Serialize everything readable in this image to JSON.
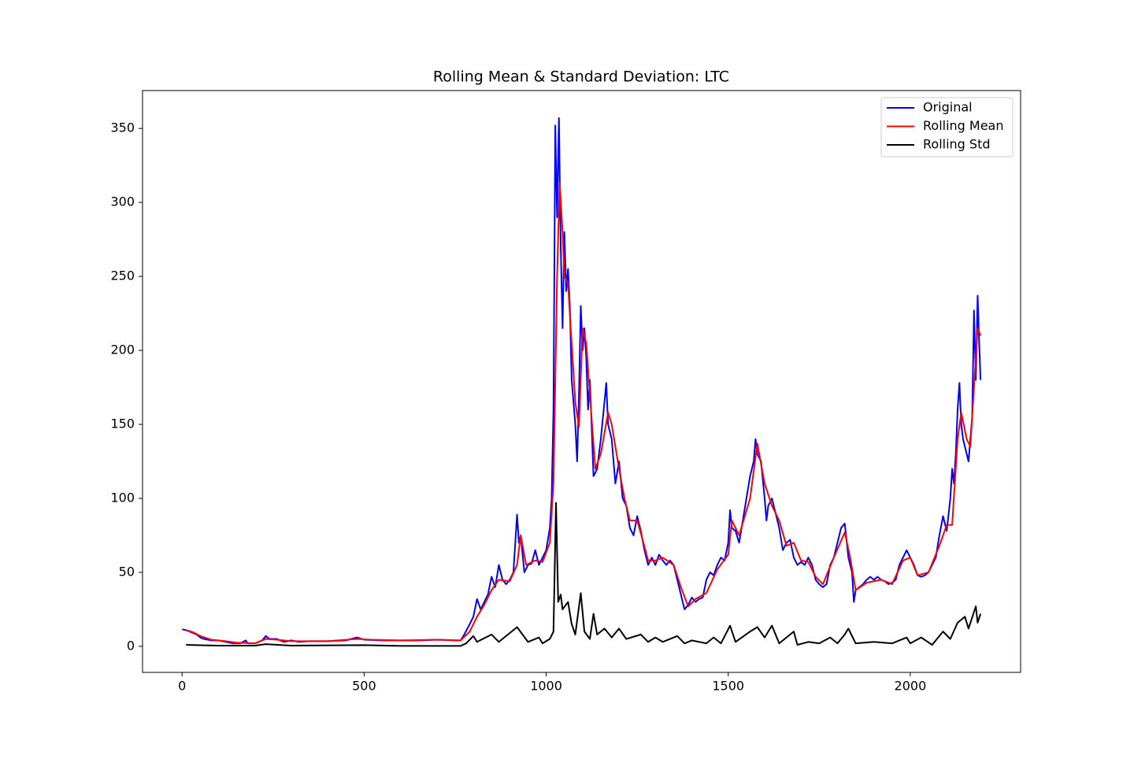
{
  "chart_data": {
    "type": "line",
    "title": "Rolling Mean & Standard Deviation:  LTC",
    "xlim": [
      -108.6,
      2303
    ],
    "ylim": [
      -17.6,
      375.6
    ],
    "xticks": [
      0,
      500,
      1000,
      1500,
      2000
    ],
    "yticks": [
      0,
      50,
      100,
      150,
      200,
      250,
      300,
      350
    ],
    "legend": "upper right",
    "series": [
      {
        "name": "Original",
        "color": "#0000ff",
        "x": [
          0,
          10,
          20,
          30,
          40,
          50,
          60,
          80,
          100,
          120,
          140,
          160,
          175,
          180,
          200,
          220,
          230,
          240,
          260,
          280,
          300,
          320,
          350,
          400,
          450,
          480,
          500,
          550,
          600,
          650,
          700,
          750,
          765,
          775,
          790,
          800,
          810,
          820,
          830,
          840,
          850,
          860,
          870,
          880,
          890,
          900,
          910,
          920,
          925,
          930,
          940,
          950,
          960,
          970,
          980,
          990,
          1000,
          1010,
          1015,
          1020,
          1025,
          1030,
          1035,
          1040,
          1045,
          1050,
          1055,
          1060,
          1065,
          1070,
          1080,
          1085,
          1090,
          1095,
          1100,
          1105,
          1110,
          1115,
          1120,
          1130,
          1140,
          1150,
          1160,
          1165,
          1170,
          1180,
          1190,
          1200,
          1210,
          1220,
          1230,
          1240,
          1250,
          1260,
          1270,
          1280,
          1290,
          1300,
          1310,
          1320,
          1330,
          1340,
          1350,
          1360,
          1370,
          1380,
          1390,
          1400,
          1410,
          1420,
          1430,
          1440,
          1450,
          1460,
          1470,
          1480,
          1490,
          1500,
          1505,
          1510,
          1520,
          1530,
          1540,
          1550,
          1560,
          1570,
          1575,
          1580,
          1590,
          1600,
          1605,
          1610,
          1620,
          1630,
          1640,
          1650,
          1660,
          1670,
          1680,
          1690,
          1700,
          1710,
          1720,
          1730,
          1740,
          1750,
          1760,
          1770,
          1780,
          1790,
          1800,
          1810,
          1820,
          1830,
          1840,
          1845,
          1850,
          1860,
          1870,
          1880,
          1890,
          1900,
          1910,
          1920,
          1930,
          1940,
          1950,
          1960,
          1970,
          1980,
          1990,
          2000,
          2010,
          2020,
          2030,
          2040,
          2050,
          2060,
          2070,
          2080,
          2090,
          2100,
          2110,
          2115,
          2120,
          2125,
          2130,
          2135,
          2140,
          2145,
          2150,
          2160,
          2170,
          2175,
          2180,
          2185,
          2190,
          2193
        ],
        "values": [
          11.5,
          11,
          10,
          9,
          8,
          6,
          5,
          4,
          4,
          3,
          2,
          2,
          4,
          2,
          2,
          4,
          7,
          5,
          5,
          3,
          4,
          3,
          3.5,
          3.5,
          4,
          6,
          4.5,
          4,
          4,
          4,
          4.5,
          4,
          4,
          8,
          15,
          20,
          32,
          25,
          30,
          35,
          47,
          40,
          55,
          45,
          42,
          45,
          50,
          89,
          70,
          75,
          50,
          55,
          56,
          65,
          55,
          60,
          65,
          80,
          100,
          160,
          352,
          290,
          357,
          270,
          215,
          280,
          240,
          255,
          230,
          180,
          150,
          125,
          170,
          230,
          200,
          215,
          195,
          160,
          180,
          115,
          120,
          140,
          165,
          178,
          150,
          140,
          110,
          125,
          100,
          95,
          80,
          75,
          88,
          78,
          65,
          55,
          60,
          55,
          62,
          58,
          55,
          58,
          55,
          45,
          35,
          25,
          28,
          33,
          30,
          32,
          33,
          45,
          50,
          48,
          55,
          60,
          58,
          70,
          92,
          80,
          78,
          70,
          85,
          100,
          115,
          125,
          140,
          130,
          125,
          100,
          85,
          95,
          100,
          90,
          80,
          65,
          70,
          72,
          60,
          55,
          57,
          55,
          60,
          55,
          45,
          42,
          40,
          42,
          55,
          60,
          70,
          80,
          83,
          60,
          50,
          30,
          38,
          40,
          42,
          45,
          47,
          45,
          47,
          45,
          44,
          42,
          43,
          45,
          55,
          60,
          65,
          60,
          55,
          48,
          47,
          48,
          50,
          55,
          60,
          75,
          88,
          78,
          100,
          120,
          110,
          130,
          160,
          178,
          150,
          140,
          135,
          125,
          155,
          227,
          180,
          237,
          200,
          180
        ]
      },
      {
        "name": "Rolling Mean",
        "color": "#ff0000",
        "x": [
          11,
          30,
          50,
          80,
          120,
          150,
          200,
          230,
          260,
          300,
          400,
          480,
          520,
          600,
          700,
          765,
          790,
          810,
          830,
          850,
          870,
          900,
          920,
          930,
          945,
          970,
          990,
          1010,
          1020,
          1030,
          1037,
          1045,
          1050,
          1060,
          1070,
          1080,
          1090,
          1100,
          1110,
          1120,
          1135,
          1150,
          1170,
          1180,
          1200,
          1215,
          1230,
          1250,
          1265,
          1280,
          1300,
          1320,
          1350,
          1370,
          1390,
          1410,
          1440,
          1470,
          1500,
          1510,
          1530,
          1560,
          1580,
          1600,
          1620,
          1640,
          1660,
          1680,
          1700,
          1720,
          1740,
          1760,
          1790,
          1820,
          1835,
          1850,
          1880,
          1920,
          1950,
          1980,
          2000,
          2020,
          2050,
          2080,
          2100,
          2115,
          2130,
          2140,
          2155,
          2165,
          2185,
          2193
        ],
        "values": [
          11,
          9.5,
          7,
          4.5,
          3.5,
          2.5,
          2,
          5,
          4.5,
          3.5,
          3.5,
          5,
          4.5,
          4,
          4.5,
          4,
          10,
          20,
          28,
          38,
          45,
          44,
          55,
          75,
          55,
          58,
          57,
          70,
          110,
          250,
          313,
          280,
          250,
          245,
          205,
          165,
          148,
          215,
          205,
          170,
          120,
          130,
          158,
          150,
          120,
          100,
          85,
          85,
          72,
          58,
          58,
          60,
          55,
          40,
          27,
          32,
          36,
          52,
          62,
          85,
          75,
          100,
          137,
          110,
          95,
          85,
          68,
          70,
          58,
          57,
          47,
          42,
          60,
          77,
          60,
          38,
          43,
          45,
          42,
          58,
          60,
          48,
          50,
          68,
          82,
          82,
          140,
          158,
          140,
          135,
          215,
          210
        ]
      },
      {
        "name": "Rolling Std",
        "color": "#000000",
        "x": [
          11,
          100,
          200,
          230,
          300,
          500,
          600,
          765,
          780,
          800,
          810,
          850,
          870,
          920,
          935,
          950,
          980,
          990,
          1010,
          1020,
          1027,
          1033,
          1040,
          1045,
          1060,
          1070,
          1080,
          1095,
          1105,
          1120,
          1130,
          1140,
          1160,
          1180,
          1200,
          1220,
          1260,
          1280,
          1300,
          1320,
          1360,
          1380,
          1400,
          1440,
          1460,
          1480,
          1505,
          1520,
          1560,
          1580,
          1600,
          1620,
          1640,
          1680,
          1690,
          1720,
          1750,
          1780,
          1800,
          1820,
          1830,
          1850,
          1900,
          1950,
          1990,
          2000,
          2030,
          2060,
          2090,
          2110,
          2130,
          2150,
          2160,
          2180,
          2185,
          2193
        ],
        "values": [
          1,
          0.5,
          0.5,
          1.5,
          0.5,
          0.8,
          0.3,
          0.3,
          2,
          7,
          3,
          8,
          3,
          13,
          8,
          3,
          6,
          2,
          5,
          10,
          97,
          30,
          35,
          25,
          30,
          15,
          8,
          36,
          10,
          5,
          22,
          8,
          12,
          6,
          12,
          5,
          8,
          3,
          6,
          3,
          7,
          2,
          4,
          2,
          6,
          2,
          14,
          3,
          10,
          13,
          6,
          14,
          2,
          10,
          1,
          3,
          2,
          6,
          2,
          8,
          12,
          2,
          3,
          2,
          6,
          2,
          6,
          1,
          10,
          5,
          16,
          20,
          12,
          27,
          16,
          22
        ]
      }
    ]
  }
}
